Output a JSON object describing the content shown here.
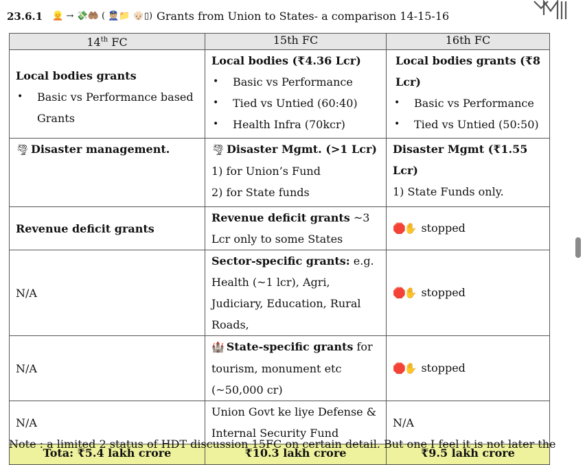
{
  "heading": {
    "number": "23.6.1",
    "emoji_left": "👱 → 💸🤲🏽 (",
    "emoji_right": "👮🏼📁 👴🏻▯)",
    "title": "Grants from Union to States- a comparison 14-15-16"
  },
  "columns": [
    "14th FC",
    "15th FC",
    "16th FC"
  ],
  "col14_sup": "th",
  "rows": {
    "local": {
      "c14_title": "Local bodies grants",
      "c14_items": [
        "Basic vs Performance based Grants"
      ],
      "c15_title": "Local bodies (₹4.36 Lcr)",
      "c15_items": [
        "Basic vs Performance",
        "Tied vs Untied (60:40)",
        "Health Infra (70kcr)"
      ],
      "c16_title": "Local bodies grants (₹8 Lcr)",
      "c16_items": [
        "Basic vs Performance",
        "Tied vs Untied (50:50)"
      ]
    },
    "disaster": {
      "icon": "🌪",
      "c14_title": "Disaster management.",
      "c15_title": "Disaster Mgmt. (>1 Lcr)",
      "c15_lines": [
        "1) for Union’s Fund",
        "2) for State funds"
      ],
      "c16_title": "Disaster Mgmt (₹1.55 Lcr)",
      "c16_lines": [
        "1) State Funds only."
      ]
    },
    "revenue": {
      "c14": "Revenue deficit grants",
      "c15_title": "Revenue deficit grants",
      "c15_rest": " ~3 Lcr only to some States",
      "c16": "stopped"
    },
    "sector": {
      "c14": "N/A",
      "c15_title": "Sector-specific grants:",
      "c15_rest": " e.g. Health (~1 lcr), Agri, Judiciary, Education, Rural Roads,",
      "c16": "stopped"
    },
    "state": {
      "c14": "N/A",
      "icon": "🏰",
      "c15_title": "State-specific grants",
      "c15_rest": " for tourism, monument etc (~50,000 cr)",
      "c16": "stopped"
    },
    "defense": {
      "c14": "N/A",
      "c15": "Union Govt ke liye Defense & Internal Security Fund",
      "c16": "N/A"
    },
    "total": {
      "c14": "Tota: ₹5.4 lakh crore",
      "c15": "₹10.3 lakh crore",
      "c16": "₹9.5 lakh crore"
    }
  },
  "stop_icons": "🛑✋",
  "cutoff_text": "Note : a limited 2 status of HDT discussion 15FC on certain detail. But one I feel it is not later the"
}
